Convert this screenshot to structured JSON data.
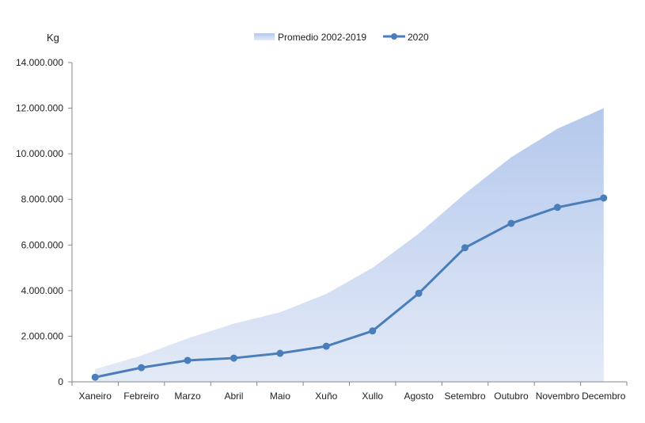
{
  "chart_data": {
    "type": "area+line",
    "ylabel": "Kg",
    "ylim": [
      0,
      14000000
    ],
    "yticks": [
      0,
      2000000,
      4000000,
      6000000,
      8000000,
      10000000,
      12000000,
      14000000
    ],
    "ytick_labels": [
      "0",
      "2.000.000",
      "4.000.000",
      "6.000.000",
      "8.000.000",
      "10.000.000",
      "12.000.000",
      "14.000.000"
    ],
    "categories": [
      "Xaneiro",
      "Febreiro",
      "Marzo",
      "Abril",
      "Maio",
      "Xuño",
      "Xullo",
      "Agosto",
      "Setembro",
      "Outubro",
      "Novembro",
      "Decembro"
    ],
    "legend_position": "top-center",
    "grid": false,
    "series": [
      {
        "name": "Promedio 2002-2019",
        "kind": "area",
        "color_top": "#b4c8ec",
        "color_bottom": "#e3eaf7",
        "values": [
          550000,
          1150000,
          1900000,
          2550000,
          3050000,
          3850000,
          5000000,
          6500000,
          8250000,
          9850000,
          11100000,
          12000000
        ]
      },
      {
        "name": "2020",
        "kind": "line",
        "color": "#4a7ebb",
        "values": [
          200000,
          620000,
          940000,
          1040000,
          1250000,
          1560000,
          2230000,
          3880000,
          5880000,
          6950000,
          7650000,
          8060000
        ]
      }
    ]
  }
}
